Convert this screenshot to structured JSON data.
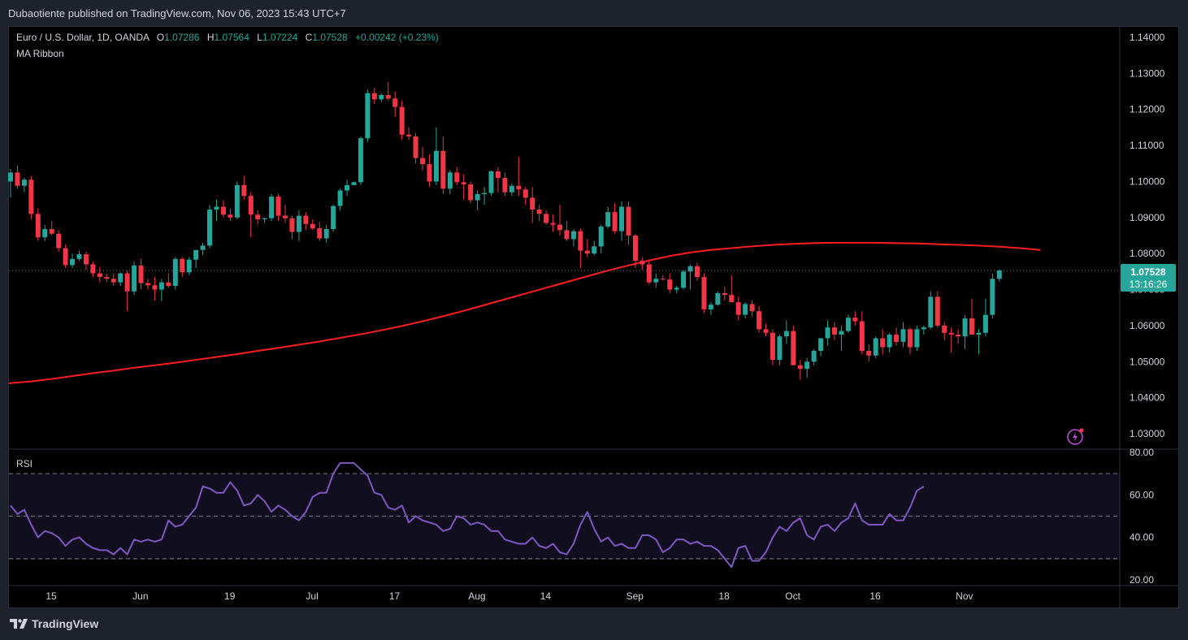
{
  "header": {
    "published": "Dubaotiente published on TradingView.com, Nov 06, 2023 15:43 UTC+7"
  },
  "legend": {
    "symbol": "Euro / U.S. Dollar, 1D, OANDA",
    "o_label": "O",
    "o_value": "1.07286",
    "h_label": "H",
    "h_value": "1.07564",
    "l_label": "L",
    "l_value": "1.07224",
    "c_label": "C",
    "c_value": "1.07528",
    "change": "+0.00242 (+0.23%)",
    "indicator": "MA Ribbon"
  },
  "rsi_pane": {
    "label": "RSI"
  },
  "price_badge": {
    "price": "1.07528",
    "countdown": "13:16:26"
  },
  "footer": {
    "brand": "TradingView"
  },
  "colors": {
    "up": "#26a69a",
    "down": "#f23645",
    "ma": "#ff1e1e",
    "rsi": "#7e57c2",
    "background": "#000000",
    "grid_text": "#d1d4dc"
  },
  "icons": {
    "flash": "lightning-icon",
    "logo": "tradingview-logo-icon"
  },
  "chart_data": [
    {
      "type": "candlestick",
      "title": "Euro / U.S. Dollar, 1D, OANDA",
      "ylim": [
        1.025,
        1.1425
      ],
      "y_ticks": [
        "1.14000",
        "1.13000",
        "1.12000",
        "1.11000",
        "1.10000",
        "1.09000",
        "1.08000",
        "1.07000",
        "1.06000",
        "1.05000",
        "1.04000",
        "1.03000"
      ],
      "x_ticks": [
        {
          "label": "15",
          "i": 0
        },
        {
          "label": "Jun",
          "i": 13
        },
        {
          "label": "19",
          "i": 26
        },
        {
          "label": "Jul",
          "i": 38
        },
        {
          "label": "17",
          "i": 50
        },
        {
          "label": "Aug",
          "i": 62
        },
        {
          "label": "14",
          "i": 72
        },
        {
          "label": "Sep",
          "i": 85
        },
        {
          "label": "18",
          "i": 98
        },
        {
          "label": "Oct",
          "i": 108
        },
        {
          "label": "16",
          "i": 120
        },
        {
          "label": "Nov",
          "i": 133
        }
      ],
      "last_price_line": 1.07528,
      "candles": [
        [
          1.1,
          1.1035,
          1.0955,
          1.1025
        ],
        [
          1.1025,
          1.1045,
          1.098,
          1.0988
        ],
        [
          1.0988,
          1.101,
          1.097,
          1.1005
        ],
        [
          1.1005,
          1.1015,
          1.0895,
          1.091
        ],
        [
          1.091,
          1.0925,
          1.0835,
          1.0845
        ],
        [
          1.0845,
          1.088,
          1.0835,
          1.0868
        ],
        [
          1.0868,
          1.089,
          1.085,
          1.0855
        ],
        [
          1.0855,
          1.0865,
          1.0805,
          1.0815
        ],
        [
          1.0815,
          1.0825,
          1.076,
          1.0768
        ],
        [
          1.0768,
          1.08,
          1.076,
          1.0785
        ],
        [
          1.0785,
          1.0808,
          1.078,
          1.0798
        ],
        [
          1.0798,
          1.0805,
          1.0755,
          1.077
        ],
        [
          1.077,
          1.0778,
          1.0735,
          1.0745
        ],
        [
          1.0745,
          1.0762,
          1.072,
          1.0735
        ],
        [
          1.0735,
          1.0745,
          1.072,
          1.073
        ],
        [
          1.073,
          1.0745,
          1.071,
          1.072
        ],
        [
          1.072,
          1.0748,
          1.071,
          1.0745
        ],
        [
          1.0745,
          1.0752,
          1.064,
          1.0695
        ],
        [
          1.0695,
          1.0778,
          1.0685,
          1.0767
        ],
        [
          1.0767,
          1.0785,
          1.07,
          1.0718
        ],
        [
          1.0718,
          1.073,
          1.07,
          1.0712
        ],
        [
          1.0712,
          1.0735,
          1.067,
          1.07
        ],
        [
          1.07,
          1.073,
          1.0668,
          1.072
        ],
        [
          1.072,
          1.0745,
          1.0705,
          1.071
        ],
        [
          1.071,
          1.079,
          1.07,
          1.0785
        ],
        [
          1.0785,
          1.079,
          1.0735,
          1.0748
        ],
        [
          1.0748,
          1.079,
          1.074,
          1.0783
        ],
        [
          1.0783,
          1.081,
          1.076,
          1.081
        ],
        [
          1.081,
          1.083,
          1.0795,
          1.0822
        ],
        [
          1.0822,
          1.0935,
          1.0815,
          1.0922
        ],
        [
          1.0922,
          1.095,
          1.089,
          1.093
        ],
        [
          1.093,
          1.0948,
          1.09,
          1.0908
        ],
        [
          1.0908,
          1.0925,
          1.089,
          1.09
        ],
        [
          1.09,
          1.1,
          1.0895,
          1.099
        ],
        [
          1.099,
          1.1015,
          1.095,
          1.096
        ],
        [
          1.096,
          1.097,
          1.0845,
          1.0908
        ],
        [
          1.0908,
          1.092,
          1.088,
          1.0895
        ],
        [
          1.0895,
          1.09,
          1.0885,
          1.0898
        ],
        [
          1.0898,
          1.0965,
          1.089,
          1.0958
        ],
        [
          1.0958,
          1.0965,
          1.089,
          1.0905
        ],
        [
          1.0905,
          1.0935,
          1.0885,
          1.0898
        ],
        [
          1.0898,
          1.0905,
          1.084,
          1.086
        ],
        [
          1.086,
          1.092,
          1.0835,
          1.0905
        ],
        [
          1.0905,
          1.0915,
          1.0865,
          1.0882
        ],
        [
          1.0882,
          1.0895,
          1.0865,
          1.087
        ],
        [
          1.087,
          1.0888,
          1.0835,
          1.0842
        ],
        [
          1.0842,
          1.088,
          1.083,
          1.0868
        ],
        [
          1.0868,
          1.0935,
          1.086,
          1.0932
        ],
        [
          1.0932,
          1.098,
          1.092,
          1.0975
        ],
        [
          1.0975,
          1.1005,
          1.096,
          1.099
        ],
        [
          1.099,
          1.1,
          1.099,
          1.0998
        ],
        [
          1.0998,
          1.1125,
          1.099,
          1.112
        ],
        [
          1.112,
          1.1255,
          1.111,
          1.1245
        ],
        [
          1.1245,
          1.126,
          1.1215,
          1.1228
        ],
        [
          1.1228,
          1.1245,
          1.122,
          1.124
        ],
        [
          1.124,
          1.1275,
          1.1225,
          1.123
        ],
        [
          1.123,
          1.125,
          1.118,
          1.1207
        ],
        [
          1.1207,
          1.1225,
          1.1115,
          1.113
        ],
        [
          1.113,
          1.115,
          1.1115,
          1.1125
        ],
        [
          1.1125,
          1.1135,
          1.105,
          1.1065
        ],
        [
          1.1065,
          1.1095,
          1.103,
          1.1048
        ],
        [
          1.1048,
          1.1075,
          1.0985,
          1.1
        ],
        [
          1.1,
          1.115,
          1.099,
          1.1085
        ],
        [
          1.1085,
          1.1125,
          1.0965,
          1.098
        ],
        [
          1.098,
          1.1032,
          1.0965,
          1.1025
        ],
        [
          1.1025,
          1.104,
          1.099,
          1.0998
        ],
        [
          1.0998,
          1.102,
          1.095,
          1.0992
        ],
        [
          1.0992,
          1.1,
          1.094,
          1.0948
        ],
        [
          1.0948,
          1.0975,
          1.092,
          1.0965
        ],
        [
          1.0965,
          1.0985,
          1.0935,
          1.0968
        ],
        [
          1.0968,
          1.103,
          1.096,
          1.1028
        ],
        [
          1.1028,
          1.104,
          1.097,
          1.101
        ],
        [
          1.101,
          1.1025,
          1.096,
          1.097
        ],
        [
          1.097,
          1.0995,
          1.096,
          1.0988
        ],
        [
          1.0988,
          1.1068,
          1.096,
          1.0978
        ],
        [
          1.0978,
          1.0985,
          1.0935,
          1.0955
        ],
        [
          1.0955,
          1.0985,
          1.0885,
          1.0922
        ],
        [
          1.0922,
          1.0935,
          1.089,
          1.091
        ],
        [
          1.091,
          1.092,
          1.088,
          1.0885
        ],
        [
          1.0885,
          1.0908,
          1.086,
          1.088
        ],
        [
          1.088,
          1.0935,
          1.085,
          1.0865
        ],
        [
          1.0865,
          1.089,
          1.0835,
          1.084
        ],
        [
          1.084,
          1.0868,
          1.082,
          1.0862
        ],
        [
          1.0862,
          1.087,
          1.076,
          1.0808
        ],
        [
          1.0808,
          1.084,
          1.079,
          1.08
        ],
        [
          1.08,
          1.0835,
          1.0795,
          1.082
        ],
        [
          1.082,
          1.088,
          1.08,
          1.0875
        ],
        [
          1.0875,
          1.093,
          1.087,
          1.0915
        ],
        [
          1.0915,
          1.094,
          1.0855,
          1.0862
        ],
        [
          1.0862,
          1.0945,
          1.0835,
          1.093
        ],
        [
          1.093,
          1.0945,
          1.0825,
          1.085
        ],
        [
          1.085,
          1.0855,
          1.076,
          1.078
        ],
        [
          1.078,
          1.079,
          1.0755,
          1.077
        ],
        [
          1.077,
          1.078,
          1.0715,
          1.072
        ],
        [
          1.072,
          1.0745,
          1.0705,
          1.073
        ],
        [
          1.073,
          1.074,
          1.0725,
          1.0728
        ],
        [
          1.0728,
          1.0745,
          1.069,
          1.07
        ],
        [
          1.07,
          1.071,
          1.069,
          1.0705
        ],
        [
          1.0705,
          1.0755,
          1.07,
          1.075
        ],
        [
          1.075,
          1.0768,
          1.07,
          1.0765
        ],
        [
          1.0765,
          1.0775,
          1.0725,
          1.0735
        ],
        [
          1.0735,
          1.0745,
          1.0635,
          1.0645
        ],
        [
          1.0645,
          1.0665,
          1.063,
          1.0658
        ],
        [
          1.0658,
          1.0695,
          1.0655,
          1.069
        ],
        [
          1.069,
          1.0708,
          1.067,
          1.0685
        ],
        [
          1.0685,
          1.074,
          1.0665,
          1.0665
        ],
        [
          1.0665,
          1.068,
          1.0615,
          1.063
        ],
        [
          1.063,
          1.0665,
          1.062,
          1.066
        ],
        [
          1.066,
          1.067,
          1.0625,
          1.064
        ],
        [
          1.064,
          1.0655,
          1.058,
          1.059
        ],
        [
          1.059,
          1.0605,
          1.057,
          1.058
        ],
        [
          1.058,
          1.059,
          1.049,
          1.0505
        ],
        [
          1.0505,
          1.0575,
          1.049,
          1.057
        ],
        [
          1.057,
          1.0615,
          1.055,
          1.0585
        ],
        [
          1.0585,
          1.06,
          1.049,
          1.049
        ],
        [
          1.049,
          1.0505,
          1.045,
          1.048
        ],
        [
          1.048,
          1.051,
          1.0455,
          1.05
        ],
        [
          1.05,
          1.0535,
          1.049,
          1.053
        ],
        [
          1.053,
          1.0565,
          1.0515,
          1.0565
        ],
        [
          1.0565,
          1.0615,
          1.0545,
          1.0595
        ],
        [
          1.0595,
          1.061,
          1.056,
          1.0575
        ],
        [
          1.0575,
          1.06,
          1.053,
          1.0585
        ],
        [
          1.0585,
          1.063,
          1.058,
          1.0622
        ],
        [
          1.0622,
          1.064,
          1.06,
          1.0612
        ],
        [
          1.0612,
          1.064,
          1.052,
          1.053
        ],
        [
          1.053,
          1.0548,
          1.05,
          1.0517
        ],
        [
          1.0517,
          1.057,
          1.051,
          1.0565
        ],
        [
          1.0565,
          1.059,
          1.052,
          1.054
        ],
        [
          1.054,
          1.058,
          1.0525,
          1.0575
        ],
        [
          1.0575,
          1.0595,
          1.0545,
          1.0555
        ],
        [
          1.0555,
          1.061,
          1.054,
          1.059
        ],
        [
          1.059,
          1.0595,
          1.052,
          1.054
        ],
        [
          1.054,
          1.06,
          1.053,
          1.059
        ],
        [
          1.059,
          1.06,
          1.0575,
          1.0595
        ],
        [
          1.0595,
          1.0695,
          1.059,
          1.068
        ],
        [
          1.068,
          1.0695,
          1.0595,
          1.06
        ],
        [
          1.06,
          1.061,
          1.056,
          1.058
        ],
        [
          1.058,
          1.0595,
          1.0525,
          1.0575
        ],
        [
          1.0575,
          1.059,
          1.055,
          1.057
        ],
        [
          1.057,
          1.063,
          1.0535,
          1.062
        ],
        [
          1.062,
          1.0675,
          1.0575,
          1.0575
        ],
        [
          1.0575,
          1.059,
          1.052,
          1.058
        ],
        [
          1.058,
          1.0675,
          1.057,
          1.063
        ],
        [
          1.063,
          1.0745,
          1.062,
          1.073
        ],
        [
          1.073,
          1.0756,
          1.0722,
          1.0753
        ]
      ],
      "ma_line": [
        1.044,
        1.0445,
        1.0452,
        1.046,
        1.0468,
        1.0475,
        1.0483,
        1.049,
        1.0497,
        1.0505,
        1.0513,
        1.0521,
        1.053,
        1.0538,
        1.0547,
        1.0556,
        1.0566,
        1.0576,
        1.0587,
        1.0599,
        1.0612,
        1.0626,
        1.0641,
        1.0657,
        1.0673,
        1.0689,
        1.0705,
        1.0721,
        1.0737,
        1.0753,
        1.0767,
        1.0781,
        1.0793,
        1.0803,
        1.081,
        1.0815,
        1.082,
        1.0824,
        1.0827,
        1.0829,
        1.083,
        1.083,
        1.083,
        1.0829,
        1.0828,
        1.0826,
        1.0824,
        1.0822,
        1.0819,
        1.0815,
        1.081
      ],
      "ma_line_x_step": 3
    },
    {
      "type": "line",
      "title": "RSI",
      "ylim": [
        20,
        80
      ],
      "y_ticks": [
        "80.00",
        "60.00",
        "40.00",
        "20.00"
      ],
      "bands": [
        30,
        50,
        70
      ],
      "values": [
        55,
        51,
        53,
        46,
        40,
        43,
        42,
        40,
        36,
        39,
        40,
        37,
        35,
        34,
        34,
        32,
        35,
        32,
        39,
        38,
        39,
        38,
        39,
        48,
        45,
        46,
        50,
        54,
        64,
        63,
        61,
        61,
        66,
        62,
        55,
        56,
        60,
        57,
        52,
        55,
        53,
        50,
        48,
        52,
        59,
        61,
        61,
        70,
        75,
        75,
        75,
        72,
        69,
        61,
        60,
        54,
        53,
        55,
        47,
        50,
        48,
        47,
        46,
        43,
        44,
        50,
        49,
        46,
        47,
        46,
        43,
        43,
        39,
        38,
        37,
        37,
        40,
        36,
        35,
        37,
        33,
        32,
        37,
        46,
        52,
        44,
        38,
        40,
        36,
        37,
        35,
        35,
        41,
        41,
        39,
        33,
        35,
        39,
        39,
        37,
        38,
        36,
        36,
        34,
        30,
        26,
        35,
        36,
        29,
        29,
        33,
        40,
        45,
        43,
        47,
        49,
        41,
        39,
        45,
        46,
        43,
        47,
        49,
        56,
        48,
        46,
        46,
        46,
        51,
        48,
        48,
        54,
        62,
        64
      ]
    }
  ]
}
